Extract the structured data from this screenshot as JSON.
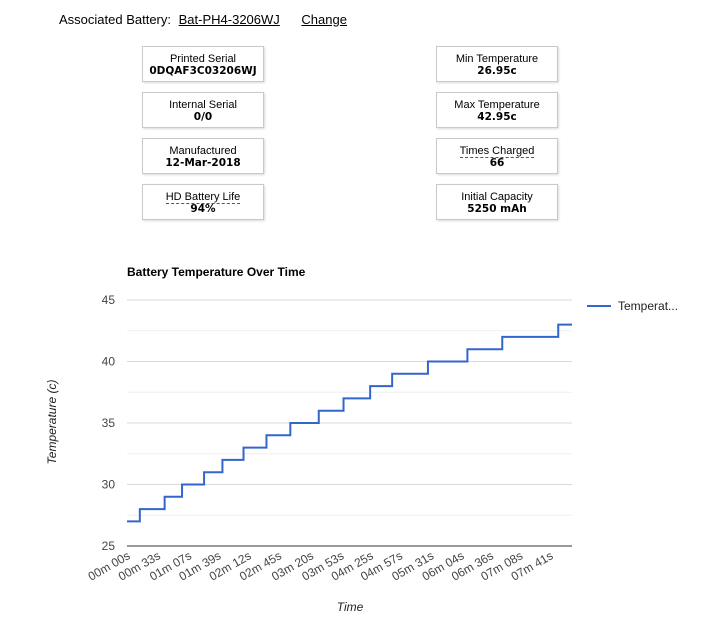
{
  "associated": {
    "label": "Associated Battery:",
    "serial": "Bat-PH4-3206WJ",
    "change": "Change"
  },
  "cards": {
    "printed_serial": {
      "label": "Printed Serial",
      "value": "0DQAF3C03206WJ"
    },
    "internal_serial": {
      "label": "Internal Serial",
      "value": "0/0"
    },
    "manufactured": {
      "label": "Manufactured",
      "value": "12-Mar-2018"
    },
    "hd_battery_life": {
      "label": "HD Battery Life",
      "value": "94%"
    },
    "min_temperature": {
      "label": "Min Temperature",
      "value": "26.95c"
    },
    "max_temperature": {
      "label": "Max Temperature",
      "value": "42.95c"
    },
    "times_charged": {
      "label": "Times Charged",
      "value": "66"
    },
    "initial_capacity": {
      "label": "Initial Capacity",
      "value": "5250 mAh"
    }
  },
  "colors": {
    "series": "#3366cc",
    "grid": "#e6e6e6"
  },
  "chart_data": {
    "type": "line",
    "title": "Battery Temperature Over Time",
    "xlabel": "Time",
    "ylabel": "Temperature (c)",
    "ylim": [
      25,
      45
    ],
    "yticks": [
      25,
      30,
      35,
      40,
      45
    ],
    "grid": true,
    "legend": "right",
    "x_tick_labels": [
      "00m 00s",
      "00m 33s",
      "01m 07s",
      "01m 39s",
      "02m 12s",
      "02m 45s",
      "03m 20s",
      "03m 53s",
      "04m 25s",
      "04m 57s",
      "05m 31s",
      "06m 04s",
      "06m 36s",
      "07m 08s",
      "07m 41s"
    ],
    "series": [
      {
        "name": "Temperat...",
        "steps": [
          {
            "t": "00m 00s",
            "temp": 27
          },
          {
            "t": "00m 14s",
            "temp": 28
          },
          {
            "t": "00m 41s",
            "temp": 29
          },
          {
            "t": "01m 00s",
            "temp": 30
          },
          {
            "t": "01m 24s",
            "temp": 31
          },
          {
            "t": "01m 44s",
            "temp": 32
          },
          {
            "t": "02m 07s",
            "temp": 33
          },
          {
            "t": "02m 32s",
            "temp": 34
          },
          {
            "t": "02m 58s",
            "temp": 35
          },
          {
            "t": "03m 29s",
            "temp": 36
          },
          {
            "t": "03m 56s",
            "temp": 37
          },
          {
            "t": "04m 25s",
            "temp": 38
          },
          {
            "t": "04m 49s",
            "temp": 39
          },
          {
            "t": "05m 28s",
            "temp": 40
          },
          {
            "t": "06m 11s",
            "temp": 41
          },
          {
            "t": "06m 49s",
            "temp": 42
          },
          {
            "t": "07m 50s",
            "temp": 43
          }
        ],
        "end_time": "08m 05s"
      }
    ]
  }
}
